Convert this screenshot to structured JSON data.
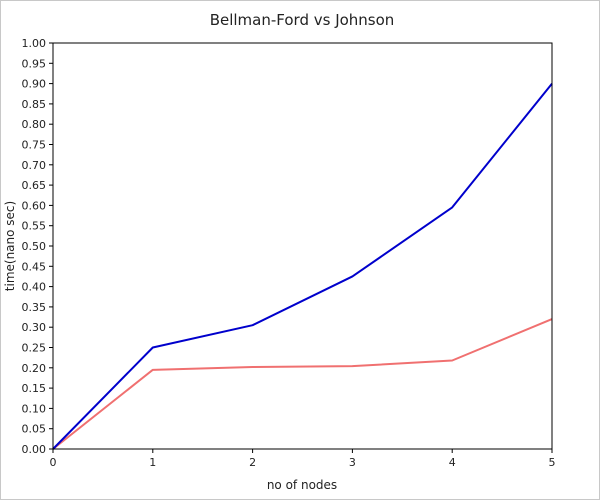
{
  "chart_data": {
    "type": "line",
    "title": "Bellman-Ford vs Johnson",
    "xlabel": "no of nodes",
    "ylabel": "time(nano sec)",
    "x": [
      0,
      1,
      2,
      3,
      4,
      5
    ],
    "xlim": [
      0,
      5
    ],
    "ylim": [
      0,
      1.0
    ],
    "x_ticks": [
      "0",
      "1",
      "2",
      "3",
      "4",
      "5"
    ],
    "y_ticks": [
      "0.00",
      "0.05",
      "0.10",
      "0.15",
      "0.20",
      "0.25",
      "0.30",
      "0.35",
      "0.40",
      "0.45",
      "0.50",
      "0.55",
      "0.60",
      "0.65",
      "0.70",
      "0.75",
      "0.80",
      "0.85",
      "0.90",
      "0.95",
      "1.00"
    ],
    "grid": false,
    "legend": "none",
    "series": [
      {
        "values": [
          0,
          0.25,
          0.305,
          0.425,
          0.595,
          0.9
        ],
        "color": "#0000cc"
      },
      {
        "values": [
          0,
          0.195,
          0.202,
          0.204,
          0.218,
          0.32
        ],
        "color": "#f07070"
      }
    ]
  }
}
